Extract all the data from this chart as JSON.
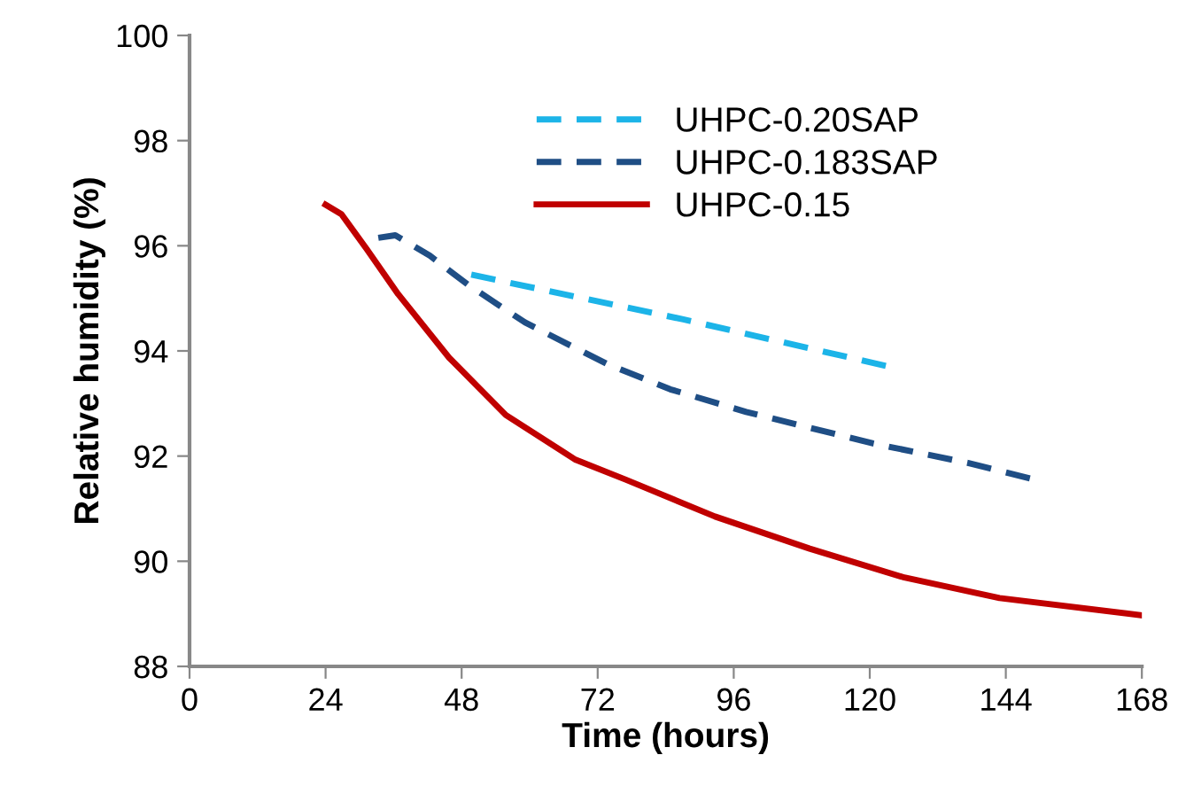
{
  "chart_data": {
    "type": "line",
    "xlabel": "Time (hours)",
    "ylabel": "Relative humidity (%)",
    "xlim": [
      0,
      168
    ],
    "xticks": [
      0,
      24,
      48,
      72,
      96,
      120,
      144,
      168
    ],
    "ylim": [
      88,
      100
    ],
    "yticks": [
      88,
      90,
      92,
      94,
      96,
      98,
      100
    ],
    "grid": false,
    "legend": "top right",
    "marker": "none",
    "series": [
      {
        "name": "UHPC-0.20SAP",
        "color": "#1cb4e8",
        "line_style": "dashed",
        "x": [
          49.7,
          87.1,
          123.9
        ],
        "values": [
          95.45,
          94.6,
          93.69
        ]
      },
      {
        "name": "UHPC-0.183SAP",
        "color": "#1f4e85",
        "line_style": "dashed",
        "x": [
          33.3,
          36.3,
          42.4,
          49.1,
          59.2,
          73.7,
          84.8,
          98.2,
          109.4,
          120.6,
          137.3,
          148.5
        ],
        "values": [
          96.15,
          96.2,
          95.81,
          95.26,
          94.54,
          93.75,
          93.27,
          92.84,
          92.54,
          92.24,
          91.87,
          91.57
        ]
      },
      {
        "name": "UHPC-0.15",
        "color": "#c00000",
        "line_style": "solid",
        "x": [
          24.0,
          26.8,
          31.3,
          36.8,
          45.8,
          55.8,
          68.1,
          77.0,
          92.7,
          109.4,
          126.1,
          142.9,
          168
        ],
        "values": [
          96.78,
          96.6,
          95.93,
          95.08,
          93.87,
          92.78,
          91.93,
          91.55,
          90.85,
          90.24,
          89.69,
          89.3,
          88.97
        ]
      }
    ]
  }
}
